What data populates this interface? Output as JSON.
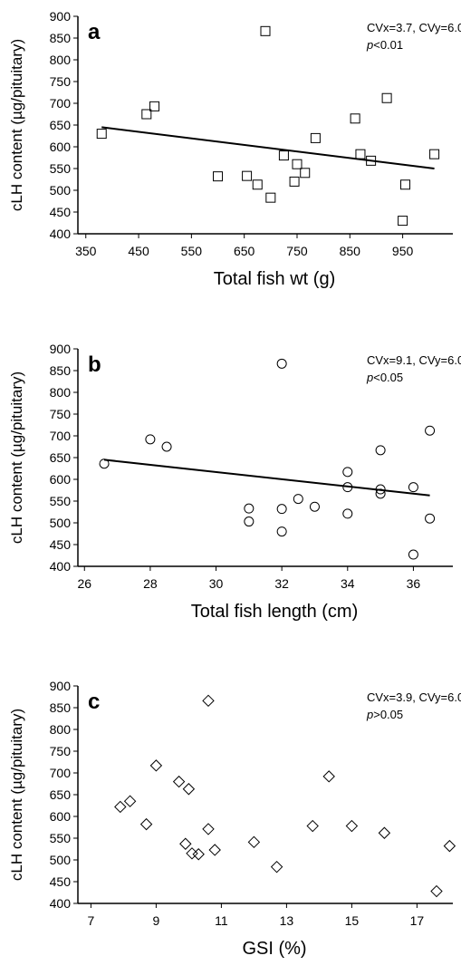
{
  "chart_data": [
    {
      "type": "scatter",
      "panel": "a",
      "marker": "square",
      "color": "#000000",
      "note": "CVx=3.7, CVy=6.0",
      "stat_note": [
        "p",
        "<0.01"
      ],
      "x_label": "Total fish wt (g)",
      "y_label": "cLH content (µg/pituitary)",
      "x": [
        380,
        465,
        480,
        600,
        655,
        675,
        690,
        700,
        725,
        745,
        750,
        765,
        785,
        860,
        870,
        890,
        920,
        950,
        955,
        1010
      ],
      "values": [
        630,
        675,
        693,
        532,
        533,
        513,
        866,
        483,
        580,
        520,
        560,
        540,
        620,
        665,
        583,
        568,
        712,
        430,
        513,
        583
      ],
      "fit": {
        "x": [
          380,
          1010
        ],
        "y": [
          645,
          550
        ]
      },
      "xlim": [
        335,
        1045
      ],
      "xticks": [
        350,
        450,
        550,
        650,
        750,
        850,
        950
      ],
      "ylim": [
        400,
        900
      ],
      "yticks": [
        400,
        450,
        500,
        550,
        600,
        650,
        700,
        750,
        800,
        850,
        900
      ]
    },
    {
      "type": "scatter",
      "panel": "b",
      "marker": "circle",
      "color": "#000000",
      "note": "CVx=9.1, CVy=6.0",
      "stat_note": [
        "p",
        "<0.05"
      ],
      "x_label": "Total fish length (cm)",
      "y_label": "cLH content (µg/pituitary)",
      "x": [
        26.6,
        28,
        28.5,
        31,
        31,
        32,
        32,
        32,
        32.5,
        33,
        34,
        34,
        34,
        35,
        35,
        35,
        36,
        36,
        36.5,
        36.5
      ],
      "values": [
        636,
        692,
        675,
        533,
        503,
        866,
        532,
        480,
        555,
        537,
        617,
        582,
        521,
        667,
        577,
        567,
        582,
        427,
        712,
        510
      ],
      "fit": {
        "x": [
          26.6,
          36.5
        ],
        "y": [
          645,
          563
        ]
      },
      "xlim": [
        25.8,
        37.2
      ],
      "xticks": [
        26,
        28,
        30,
        32,
        34,
        36
      ],
      "ylim": [
        400,
        900
      ],
      "yticks": [
        400,
        450,
        500,
        550,
        600,
        650,
        700,
        750,
        800,
        850,
        900
      ]
    },
    {
      "type": "scatter",
      "panel": "c",
      "marker": "diamond",
      "color": "#000000",
      "note": "CVx=3.9, CVy=6.0",
      "stat_note": [
        "p",
        ">0.05"
      ],
      "x_label": "GSI (%)",
      "y_label": "cLH content (µg/pituitary)",
      "x": [
        7.9,
        8.2,
        8.7,
        9,
        9.7,
        9.9,
        10,
        10.1,
        10.3,
        10.6,
        10.6,
        10.8,
        12,
        12.7,
        13.8,
        14.3,
        15,
        16,
        17.6,
        18
      ],
      "values": [
        622,
        635,
        582,
        717,
        680,
        537,
        663,
        515,
        513,
        571,
        866,
        523,
        541,
        484,
        578,
        692,
        578,
        562,
        428,
        532
      ],
      "xlim": [
        6.6,
        18.1
      ],
      "xticks": [
        7,
        9,
        11,
        13,
        15,
        17
      ],
      "ylim": [
        400,
        900
      ],
      "yticks": [
        400,
        450,
        500,
        550,
        600,
        650,
        700,
        750,
        800,
        850,
        900
      ]
    }
  ]
}
